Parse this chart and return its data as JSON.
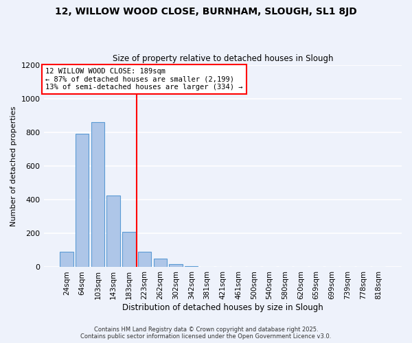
{
  "title": "12, WILLOW WOOD CLOSE, BURNHAM, SLOUGH, SL1 8JD",
  "subtitle": "Size of property relative to detached houses in Slough",
  "xlabel": "Distribution of detached houses by size in Slough",
  "ylabel": "Number of detached properties",
  "bar_labels": [
    "24sqm",
    "64sqm",
    "103sqm",
    "143sqm",
    "183sqm",
    "223sqm",
    "262sqm",
    "302sqm",
    "342sqm",
    "381sqm",
    "421sqm",
    "461sqm",
    "500sqm",
    "540sqm",
    "580sqm",
    "620sqm",
    "659sqm",
    "699sqm",
    "739sqm",
    "778sqm",
    "818sqm"
  ],
  "bar_values": [
    90,
    790,
    860,
    425,
    210,
    90,
    50,
    20,
    5,
    0,
    0,
    0,
    0,
    0,
    0,
    0,
    0,
    0,
    0,
    0,
    0
  ],
  "bar_color": "#aec6e8",
  "bar_edge_color": "#5b9bd5",
  "vline_color": "red",
  "ylim": [
    0,
    1200
  ],
  "yticks": [
    0,
    200,
    400,
    600,
    800,
    1000,
    1200
  ],
  "annotation_title": "12 WILLOW WOOD CLOSE: 189sqm",
  "annotation_line1": "← 87% of detached houses are smaller (2,199)",
  "annotation_line2": "13% of semi-detached houses are larger (334) →",
  "annotation_box_color": "white",
  "annotation_box_edge_color": "red",
  "footer1": "Contains HM Land Registry data © Crown copyright and database right 2025.",
  "footer2": "Contains public sector information licensed under the Open Government Licence v3.0.",
  "background_color": "#eef2fb",
  "grid_color": "white"
}
